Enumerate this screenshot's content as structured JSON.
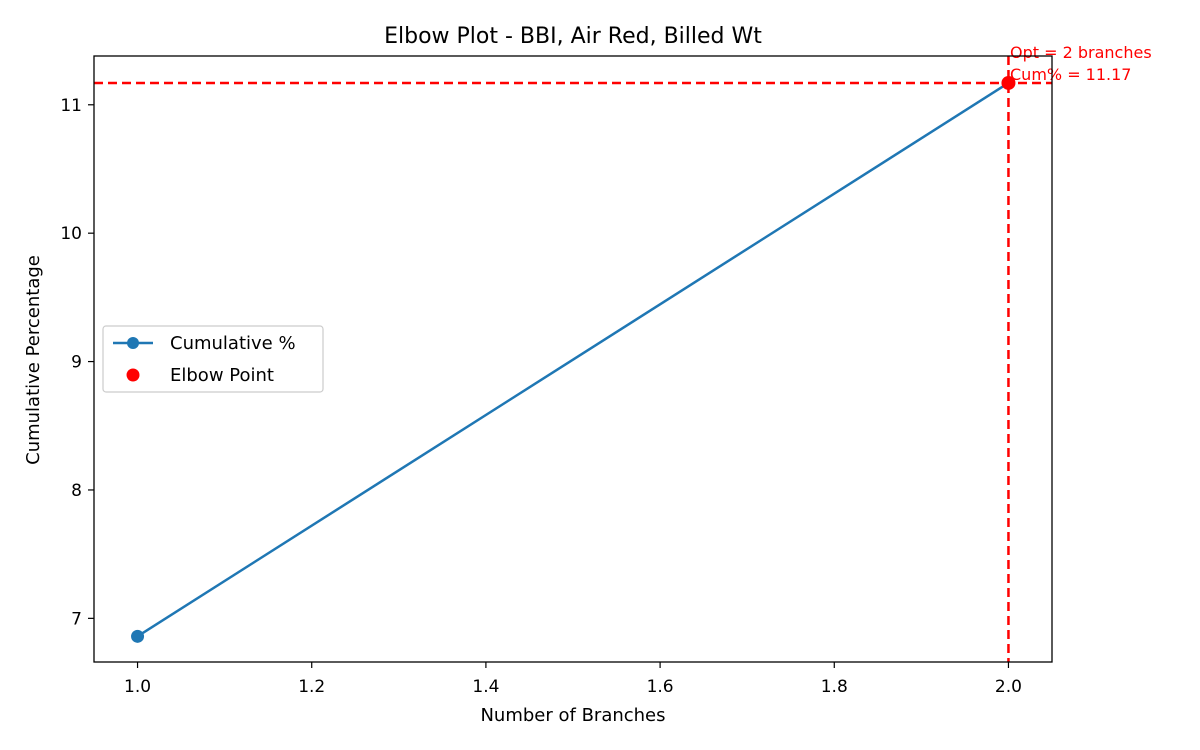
{
  "chart_data": {
    "type": "line",
    "title": "Elbow Plot - BBI, Air Red, Billed Wt",
    "xlabel": "Number of Branches",
    "ylabel": "Cumulative Percentage",
    "xlim": [
      0.95,
      2.05
    ],
    "ylim": [
      6.66,
      11.38
    ],
    "xticks": [
      "1.0",
      "1.2",
      "1.4",
      "1.6",
      "1.8",
      "2.0"
    ],
    "xtick_values": [
      1.0,
      1.2,
      1.4,
      1.6,
      1.8,
      2.0
    ],
    "yticks": [
      "7",
      "8",
      "9",
      "10",
      "11"
    ],
    "ytick_values": [
      7,
      8,
      9,
      10,
      11
    ],
    "grid": false,
    "legend_position": "center-left",
    "series": [
      {
        "name": "Cumulative %",
        "x": [
          1,
          2
        ],
        "y": [
          6.86,
          11.17
        ],
        "color": "#1f77b4",
        "marker": "circle"
      }
    ],
    "elbow_point": {
      "name": "Elbow Point",
      "x": 2,
      "y": 11.17,
      "color": "#ff0000"
    },
    "reference_lines": {
      "vertical_x": 2,
      "horizontal_y": 11.17,
      "color": "#ff0000",
      "style": "dashed"
    },
    "annotation": {
      "line1": "Opt = 2 branches",
      "line2": "Cum% = 11.17",
      "x": 2,
      "y": 11.17,
      "color": "#ff0000"
    }
  }
}
